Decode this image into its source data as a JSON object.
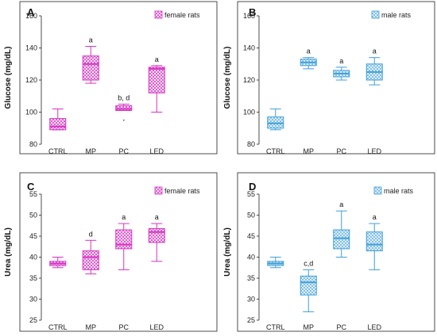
{
  "chart_data": [
    {
      "type": "box",
      "panel": "A",
      "legend": "female rats",
      "ylabel": "Glucose (mg/dL)",
      "ylim": [
        80,
        160
      ],
      "yticks": [
        80,
        100,
        120,
        140,
        160
      ],
      "categories": [
        "CTRL",
        "MP",
        "PC",
        "LED"
      ],
      "color": "#d633c4",
      "boxes": [
        {
          "min": 89,
          "q1": 89,
          "median": 91,
          "q3": 96,
          "max": 102,
          "annotation": ""
        },
        {
          "min": 118,
          "q1": 120,
          "median": 130,
          "q3": 135,
          "max": 141,
          "annotation": "a"
        },
        {
          "min": 101,
          "q1": 101,
          "median": 102,
          "q3": 104,
          "max": 105,
          "annotation": "b, d",
          "outliers": [
            95
          ]
        },
        {
          "min": 100,
          "q1": 112,
          "median": 127,
          "q3": 128,
          "max": 129,
          "annotation": "a"
        }
      ]
    },
    {
      "type": "box",
      "panel": "B",
      "legend": "male rats",
      "ylabel": "Glucose (mg/dL)",
      "ylim": [
        80,
        160
      ],
      "yticks": [
        80,
        100,
        120,
        140,
        160
      ],
      "categories": [
        "CTRL",
        "MP",
        "PC",
        "LED"
      ],
      "color": "#3f9fd8",
      "boxes": [
        {
          "min": 89,
          "q1": 90,
          "median": 93,
          "q3": 97,
          "max": 102,
          "annotation": ""
        },
        {
          "min": 127,
          "q1": 129,
          "median": 131,
          "q3": 133,
          "max": 134,
          "annotation": "a"
        },
        {
          "min": 120,
          "q1": 122,
          "median": 124,
          "q3": 126,
          "max": 128,
          "annotation": "a"
        },
        {
          "min": 117,
          "q1": 120,
          "median": 125,
          "q3": 130,
          "max": 134,
          "annotation": "a"
        }
      ]
    },
    {
      "type": "box",
      "panel": "C",
      "legend": "female rats",
      "ylabel": "Urea (mg/dL)",
      "ylim": [
        25,
        55
      ],
      "yticks": [
        25,
        30,
        35,
        40,
        45,
        50,
        55
      ],
      "categories": [
        "CTRL",
        "MP",
        "PC",
        "LED"
      ],
      "color": "#d633c4",
      "boxes": [
        {
          "min": 37.5,
          "q1": 38,
          "median": 38.5,
          "q3": 39,
          "max": 40,
          "annotation": ""
        },
        {
          "min": 36,
          "q1": 37,
          "median": 40,
          "q3": 41.5,
          "max": 44,
          "annotation": "d"
        },
        {
          "min": 37,
          "q1": 42,
          "median": 43,
          "q3": 46.5,
          "max": 48,
          "annotation": "a"
        },
        {
          "min": 39,
          "q1": 43.5,
          "median": 46,
          "q3": 46.8,
          "max": 48,
          "annotation": "a"
        }
      ]
    },
    {
      "type": "box",
      "panel": "D",
      "legend": "male rats",
      "ylabel": "Urea (mg/dL)",
      "ylim": [
        25,
        55
      ],
      "yticks": [
        25,
        30,
        35,
        40,
        45,
        50,
        55
      ],
      "categories": [
        "CTRL",
        "MP",
        "PC",
        "LED"
      ],
      "color": "#3f9fd8",
      "boxes": [
        {
          "min": 37.5,
          "q1": 38,
          "median": 38.5,
          "q3": 39,
          "max": 40,
          "annotation": ""
        },
        {
          "min": 27,
          "q1": 31,
          "median": 34,
          "q3": 35.5,
          "max": 37,
          "annotation": "c,d"
        },
        {
          "min": 40,
          "q1": 42,
          "median": 44.5,
          "q3": 46.5,
          "max": 51,
          "annotation": "a"
        },
        {
          "min": 37,
          "q1": 41.5,
          "median": 43,
          "q3": 46,
          "max": 48,
          "annotation": "a"
        }
      ]
    }
  ]
}
